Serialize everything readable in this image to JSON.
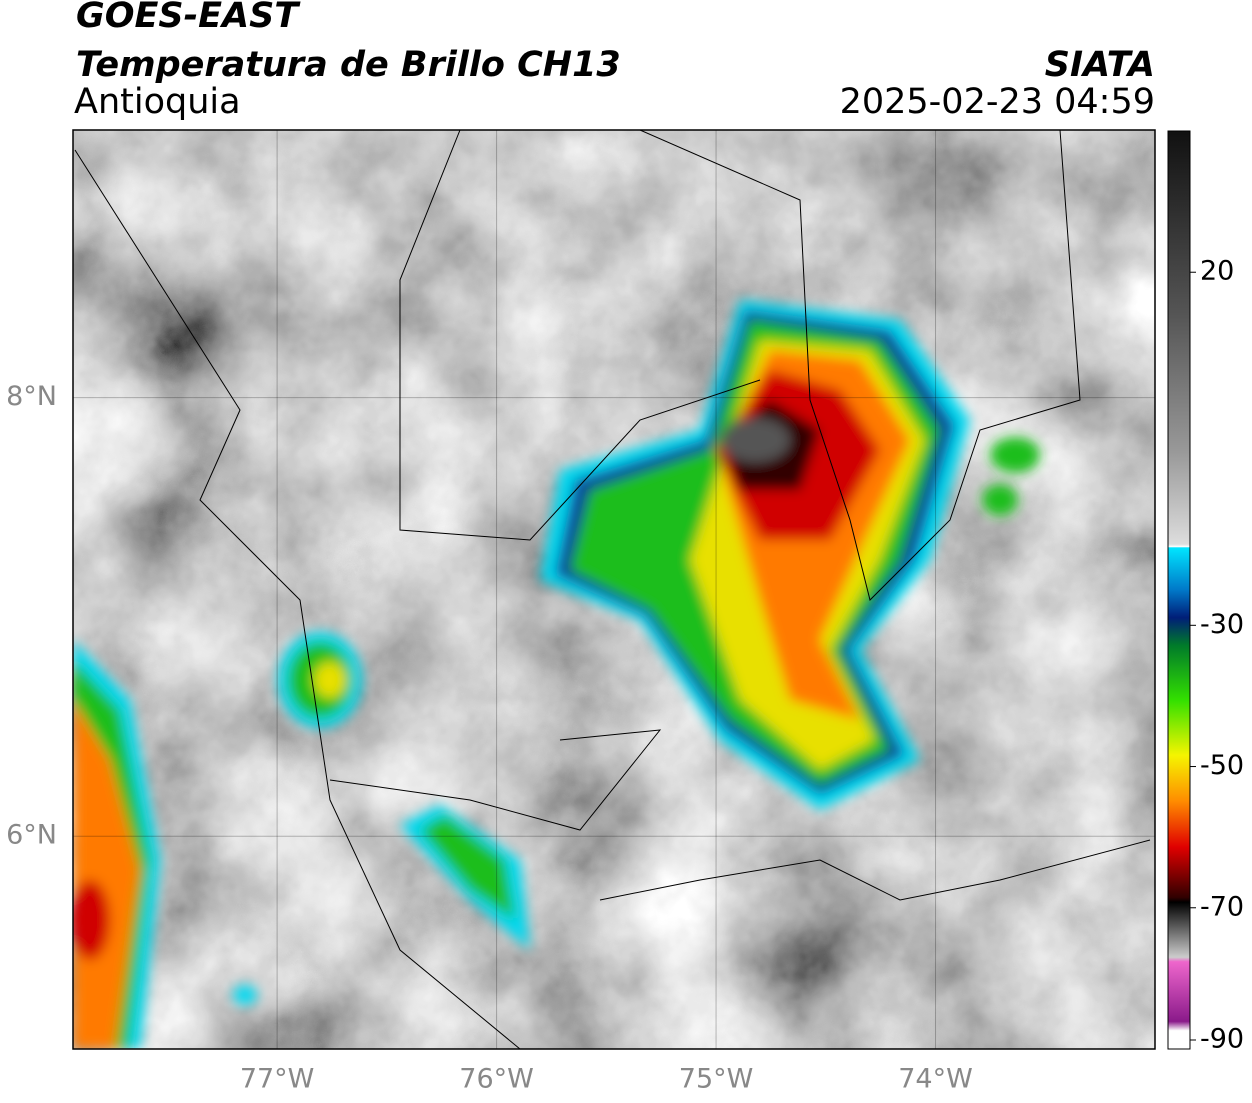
{
  "header": {
    "title": "GOES-EAST",
    "subtitle": "Temperatura de Brillo CH13",
    "region": "Antioquia",
    "agency": "SIATA",
    "timestamp": "2025-02-23 04:59"
  },
  "map": {
    "xlim": [
      -77.93,
      -73.0
    ],
    "ylim": [
      5.03,
      9.22
    ],
    "xticks": [
      {
        "value": -77,
        "label": "77°W"
      },
      {
        "value": -76,
        "label": "76°W"
      },
      {
        "value": -75,
        "label": "75°W"
      },
      {
        "value": -74,
        "label": "74°W"
      }
    ],
    "yticks": [
      {
        "value": 6,
        "label": "6°N"
      },
      {
        "value": 8,
        "label": "8°N"
      }
    ],
    "grid": true
  },
  "colorbar": {
    "lim": [
      -90,
      40
    ],
    "ticks": [
      -90,
      -70,
      -50,
      -30,
      20
    ]
  }
}
